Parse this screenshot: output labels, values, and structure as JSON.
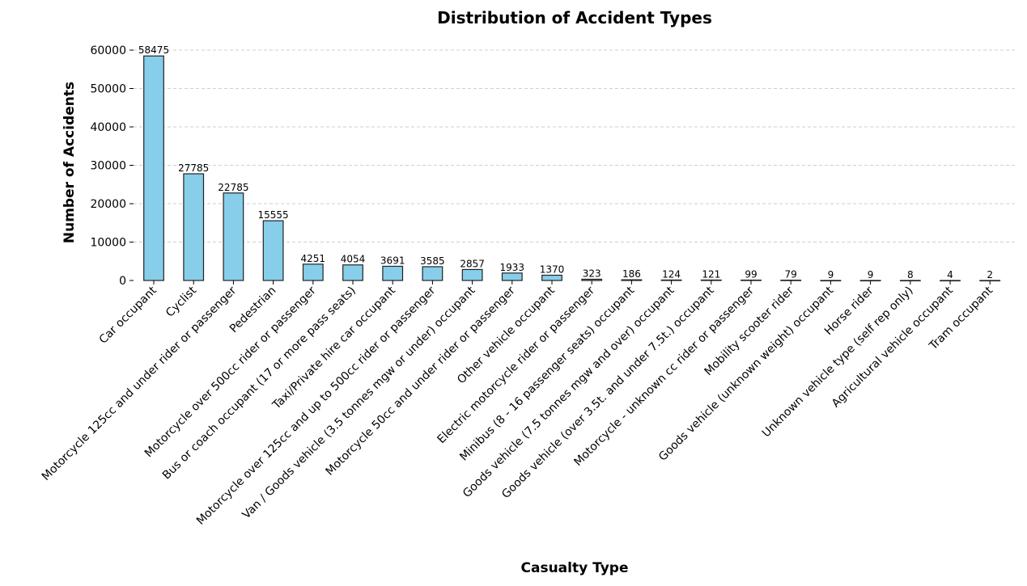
{
  "chart_data": {
    "type": "bar",
    "title": "Distribution of Accident Types",
    "xlabel": "Casualty Type",
    "ylabel": "Number of Accidents",
    "ylim": [
      0,
      60000
    ],
    "yticks": [
      0,
      10000,
      20000,
      30000,
      40000,
      50000,
      60000
    ],
    "grid": "y-dashed",
    "bar_color": "#87CEEB",
    "categories": [
      "Car occupant",
      "Cyclist",
      "Motorcycle 125cc and under rider or passenger",
      "Pedestrian",
      "Motorcycle over 500cc rider or passenger",
      "Bus or coach occupant (17 or more pass seats)",
      "Taxi/Private hire car occupant",
      "Motorcycle over 125cc and up to 500cc rider or  passenger",
      "Van / Goods vehicle (3.5 tonnes mgw or under) occupant",
      "Motorcycle 50cc and under rider or passenger",
      "Other vehicle occupant",
      "Electric motorcycle rider or passenger",
      "Minibus (8 - 16 passenger seats) occupant",
      "Goods vehicle (7.5 tonnes mgw and over) occupant",
      "Goods vehicle (over 3.5t. and under 7.5t.) occupant",
      "Motorcycle - unknown cc rider or passenger",
      "Mobility scooter rider",
      "Goods vehicle (unknown weight) occupant",
      "Horse rider",
      "Unknown vehicle type (self rep only)",
      "Agricultural vehicle occupant",
      "Tram occupant"
    ],
    "values": [
      58475,
      27785,
      22785,
      15555,
      4251,
      4054,
      3691,
      3585,
      2857,
      1933,
      1370,
      323,
      186,
      124,
      121,
      99,
      79,
      9,
      9,
      8,
      4,
      2
    ]
  }
}
